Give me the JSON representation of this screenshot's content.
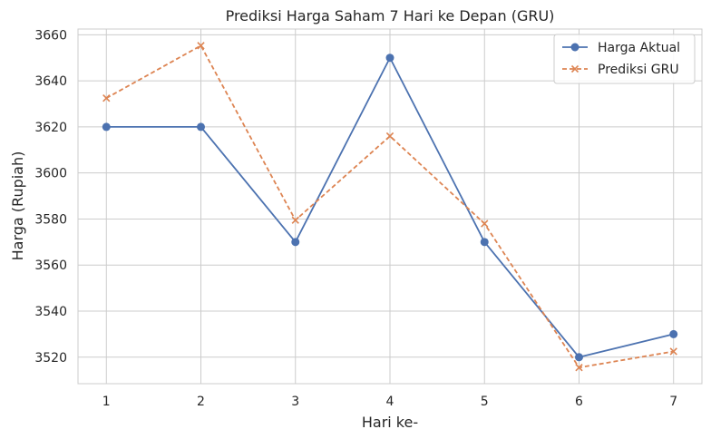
{
  "chart_data": {
    "type": "line",
    "title": "Prediksi Harga Saham 7 Hari ke Depan (GRU)",
    "xlabel": "Hari ke-",
    "ylabel": "Harga (Rupiah)",
    "x": [
      1,
      2,
      3,
      4,
      5,
      6,
      7
    ],
    "x_tick_labels": [
      "1",
      "2",
      "3",
      "4",
      "5",
      "6",
      "7"
    ],
    "xlim": [
      0.7,
      7.3
    ],
    "ylim": [
      3508.5,
      3662.5
    ],
    "y_ticks": [
      3520,
      3540,
      3560,
      3580,
      3600,
      3620,
      3640,
      3660
    ],
    "y_tick_labels": [
      "3520",
      "3540",
      "3560",
      "3580",
      "3600",
      "3620",
      "3640",
      "3660"
    ],
    "grid": true,
    "legend_position": "top-right",
    "series": [
      {
        "name": "Harga Aktual",
        "values": [
          3620,
          3620,
          3570,
          3650,
          3570,
          3520,
          3530
        ],
        "color": "#4c72b0",
        "marker": "circle",
        "line_style": "solid"
      },
      {
        "name": "Prediksi GRU",
        "values": [
          3632.5,
          3655.3,
          3579.5,
          3616.0,
          3578.0,
          3515.5,
          3522.5
        ],
        "color": "#dd8452",
        "marker": "x",
        "line_style": "dashed"
      }
    ]
  }
}
